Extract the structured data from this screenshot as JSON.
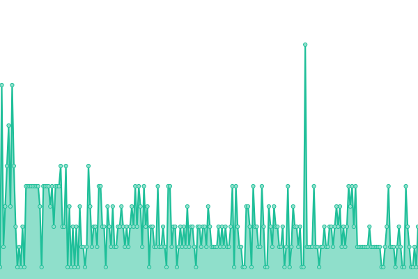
{
  "chart_data": {
    "type": "area",
    "title": "",
    "xlabel": "",
    "ylabel": "",
    "grid": false,
    "legend": "none",
    "series": [
      {
        "values": [
          1,
          10,
          2,
          4,
          6,
          8,
          4,
          10,
          6,
          3,
          1,
          2,
          1,
          3,
          1,
          5,
          5,
          5,
          5,
          5,
          5,
          5,
          5,
          4,
          1,
          5,
          5,
          5,
          5,
          4,
          5,
          3,
          5,
          5,
          5,
          6,
          3,
          3,
          6,
          1,
          4,
          1,
          3,
          1,
          3,
          1,
          4,
          2,
          2,
          1,
          2,
          6,
          4,
          2,
          3,
          3,
          2,
          5,
          5,
          3,
          3,
          1,
          4,
          3,
          2,
          4,
          2,
          2,
          3,
          3,
          4,
          3,
          2,
          3,
          2,
          3,
          4,
          3,
          5,
          3,
          5,
          4,
          2,
          5,
          3,
          4,
          1,
          3,
          3,
          2,
          2,
          5,
          2,
          2,
          3,
          2,
          1,
          5,
          5,
          2,
          3,
          3,
          1,
          2,
          3,
          2,
          3,
          2,
          4,
          2,
          3,
          3,
          2,
          1,
          3,
          3,
          2,
          3,
          3,
          2,
          4,
          3,
          2,
          2,
          2,
          2,
          3,
          2,
          3,
          2,
          3,
          2,
          2,
          3,
          5,
          1,
          5,
          3,
          2,
          2,
          1,
          1,
          4,
          4,
          3,
          1,
          5,
          3,
          3,
          2,
          2,
          5,
          3,
          1,
          1,
          4,
          3,
          2,
          4,
          3,
          3,
          2,
          2,
          3,
          1,
          2,
          5,
          1,
          2,
          4,
          3,
          3,
          2,
          3,
          1,
          1,
          12,
          2,
          2,
          2,
          2,
          5,
          2,
          2,
          1,
          2,
          2,
          3,
          2,
          2,
          3,
          3,
          2,
          3,
          4,
          3,
          4,
          2,
          3,
          2,
          3,
          5,
          4,
          5,
          3,
          5,
          2,
          2,
          2,
          2,
          2,
          2,
          2,
          3,
          2,
          2,
          2,
          2,
          2,
          2,
          1,
          1,
          2,
          3,
          5,
          2,
          2,
          2,
          1,
          2,
          3,
          2,
          1,
          1,
          5,
          3,
          2,
          1,
          1,
          2,
          1,
          3
        ],
        "color": "#1fbf99",
        "fill": "#8fdfcb"
      }
    ],
    "ylim": [
      0,
      12
    ]
  }
}
